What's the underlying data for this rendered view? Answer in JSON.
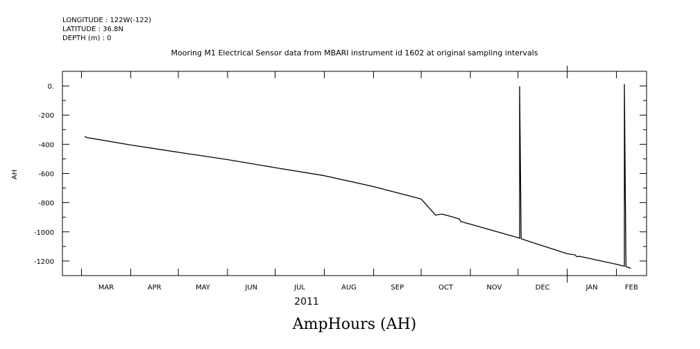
{
  "header": {
    "longitude": "LONGITUDE : 122W(-122)",
    "latitude": "LATITUDE : 36.8N",
    "depth": "DEPTH (m) : 0"
  },
  "chart_data": {
    "type": "line",
    "title": "Mooring M1 Electrical Sensor data from MBARI instrument id 1602 at original sampling intervals",
    "ylabel": "AH",
    "xlabel_year": "2011",
    "bottom_label": "AmpHours (AH)",
    "ylim": [
      -1300,
      100
    ],
    "yticks": [
      0,
      -200,
      -400,
      -600,
      -800,
      -1000,
      -1200
    ],
    "ytick_labels": [
      "0.",
      "-200",
      "-400",
      "-600",
      "-800",
      "-1000",
      "-1200"
    ],
    "xlim": [
      "2011-02-17",
      "2012-02-20"
    ],
    "month_labels": [
      "MAR",
      "APR",
      "MAY",
      "JUN",
      "JUL",
      "AUG",
      "SEP",
      "OCT",
      "NOV",
      "DEC",
      "JAN",
      "FEB"
    ],
    "month_starts": [
      "2011-03-01",
      "2011-04-01",
      "2011-05-01",
      "2011-06-01",
      "2011-07-01",
      "2011-08-01",
      "2011-09-01",
      "2011-10-01",
      "2011-11-01",
      "2011-12-01",
      "2012-01-01",
      "2012-02-01"
    ],
    "grid": false,
    "series": [
      {
        "x": [
          "2011-03-03",
          "2011-03-05",
          "2011-04-01",
          "2011-05-01",
          "2011-06-01",
          "2011-07-01",
          "2011-08-01",
          "2011-09-01",
          "2011-10-01",
          "2011-10-08",
          "2011-10-10",
          "2011-10-14",
          "2011-10-20",
          "2011-10-25",
          "2011-10-26",
          "2011-11-01",
          "2011-12-01",
          "2011-12-02",
          "2011-12-02",
          "2011-12-03",
          "2012-01-01",
          "2012-01-06",
          "2012-01-07",
          "2012-01-09",
          "2012-02-01",
          "2012-02-06",
          "2012-02-06",
          "2012-02-07",
          "2012-02-10"
        ],
        "y": [
          -348,
          -355,
          -405,
          -455,
          -505,
          -560,
          -615,
          -690,
          -775,
          -860,
          -885,
          -878,
          -895,
          -912,
          -930,
          -948,
          -1040,
          -1045,
          -5,
          -1048,
          -1150,
          -1158,
          -1170,
          -1168,
          -1222,
          -1236,
          10,
          -1238,
          -1250
        ]
      }
    ]
  }
}
